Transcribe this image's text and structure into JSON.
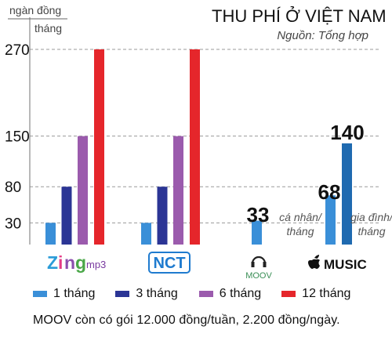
{
  "chart_data": {
    "type": "bar",
    "title": "THU PHÍ Ở VIỆT NAM",
    "subtitle": "Nguồn: Tổng hợp",
    "y_unit_line1": "ngàn đồng",
    "y_unit_line2": "tháng",
    "yticks": [
      30,
      80,
      150,
      270
    ],
    "ylim": [
      0,
      290
    ],
    "grid": "dashed at tick values",
    "categories": [
      {
        "id": "zing",
        "label_word": "Zing",
        "label_suffix": "mp3",
        "icon": "zing-mp3-logo"
      },
      {
        "id": "nct",
        "label_word": "NCT",
        "icon": "nct-logo"
      },
      {
        "id": "moov",
        "label_word": "MOOV",
        "icon": "moov-headphones-logo"
      },
      {
        "id": "apple",
        "label_word": "MUSIC",
        "icon": "apple-logo"
      }
    ],
    "series": [
      {
        "name": "1 tháng",
        "color": "#3a8fd8",
        "values": [
          30,
          30,
          33,
          68
        ]
      },
      {
        "name": "3 tháng",
        "color": "#2b3595",
        "values": [
          80,
          80,
          null,
          null
        ]
      },
      {
        "name": "6 tháng",
        "color": "#9b5bad",
        "values": [
          150,
          150,
          null,
          null
        ]
      },
      {
        "name": "12 tháng",
        "color": "#e5262b",
        "values": [
          270,
          270,
          null,
          null
        ]
      }
    ],
    "apple_extra": {
      "value": 140,
      "color": "#1f6ab0",
      "label": "gia đình/\ntháng"
    },
    "apple_individual_label": "cá nhân/\ntháng",
    "data_labels": [
      "33",
      "68",
      "140"
    ]
  },
  "footnote": "MOOV còn có gói 12.000 đồng/tuần, 2.200 đồng/ngày."
}
